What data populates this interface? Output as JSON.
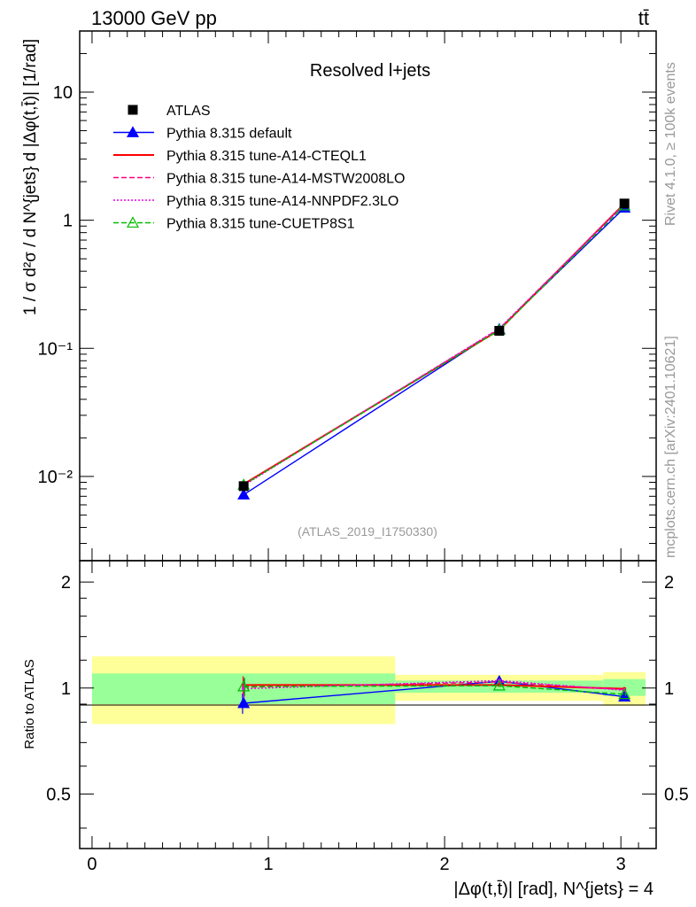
{
  "header": {
    "left": "13000 GeV pp",
    "right": "tt̄"
  },
  "side_labels": {
    "top": "Rivet 4.1.0, ≥ 100k events",
    "bottom": "mcplots.cern.ch [arXiv:2401.10621]"
  },
  "chart_data": [
    {
      "type": "line",
      "panel": "main",
      "title": "Resolved l+jets",
      "watermark": "(ATLAS_2019_I1750330)",
      "ylabel": "1 / σ d²σ / d N^{jets} d |Δφ(t,t̄)| [1/rad]",
      "yscale": "log",
      "ylim": [
        0.0022,
        30
      ],
      "xlim": [
        -0.07,
        3.2
      ],
      "grid": false,
      "legend_position": "top-left",
      "y_tick_labels": [
        "10⁻²",
        "10⁻¹",
        "1",
        "10"
      ],
      "x": [
        0.86,
        2.31,
        3.02
      ],
      "data": {
        "name": "ATLAS",
        "values": [
          0.0084,
          0.137,
          1.35
        ],
        "errors": [
          0.0005,
          0.004,
          0.04
        ]
      },
      "series": [
        {
          "name": "Pythia 8.315 default",
          "color": "#0000ff",
          "style": "solid",
          "marker": "triangle-filled",
          "values": [
            0.0072,
            0.141,
            1.25
          ]
        },
        {
          "name": "Pythia 8.315 tune-A14-CTEQL1",
          "color": "#ff0000",
          "style": "solid",
          "marker": "none",
          "values": [
            0.0087,
            0.139,
            1.35
          ]
        },
        {
          "name": "Pythia 8.315 tune-A14-MSTW2008LO",
          "color": "#ff0080",
          "style": "dashed",
          "marker": "none",
          "values": [
            0.0086,
            0.142,
            1.34
          ]
        },
        {
          "name": "Pythia 8.315 tune-A14-NNPDF2.3LO",
          "color": "#ee00ee",
          "style": "dotted",
          "marker": "none",
          "values": [
            0.0085,
            0.143,
            1.33
          ]
        },
        {
          "name": "Pythia 8.315 tune-CUETP8S1",
          "color": "#00bb00",
          "style": "dashed",
          "marker": "triangle-open",
          "values": [
            0.0086,
            0.139,
            1.3
          ]
        }
      ]
    },
    {
      "type": "line",
      "panel": "ratio",
      "ylabel": "Ratio to ATLAS",
      "xlabel": "|Δφ(t,t̄)| [rad], N^{jets} = 4",
      "ylim": [
        0.35,
        2.3
      ],
      "xlim": [
        -0.07,
        3.2
      ],
      "x_tick_labels": [
        "0",
        "1",
        "2",
        "3"
      ],
      "y_tick_labels": [
        "0.5",
        "1",
        "2"
      ],
      "bands": [
        {
          "x": [
            0.0,
            1.72
          ],
          "yellow": [
            0.79,
            1.23
          ],
          "green": [
            0.9,
            1.1
          ]
        },
        {
          "x": [
            1.72,
            2.9
          ],
          "yellow": [
            0.92,
            1.09
          ],
          "green": [
            0.97,
            1.05
          ]
        },
        {
          "x": [
            2.9,
            3.14
          ],
          "yellow": [
            0.89,
            1.11
          ],
          "green": [
            0.95,
            1.06
          ]
        }
      ],
      "x": [
        0.86,
        2.31,
        3.02
      ],
      "series": [
        {
          "name": "Pythia 8.315 default",
          "color": "#0000ff",
          "style": "solid",
          "marker": "triangle-filled",
          "values": [
            0.905,
            1.045,
            0.945
          ],
          "errors": [
            0.06,
            0.01,
            0.01
          ]
        },
        {
          "name": "Pythia 8.315 tune-A14-CTEQL1",
          "color": "#ff0000",
          "style": "solid",
          "marker": "none",
          "values": [
            1.02,
            1.02,
            0.995
          ],
          "errors": [
            0.06,
            0.01,
            0.01
          ]
        },
        {
          "name": "Pythia 8.315 tune-A14-MSTW2008LO",
          "color": "#ff0080",
          "style": "dashed",
          "marker": "none",
          "values": [
            1.005,
            1.04,
            0.99
          ],
          "errors": [
            0.06,
            0.01,
            0.01
          ]
        },
        {
          "name": "Pythia 8.315 tune-A14-NNPDF2.3LO",
          "color": "#ee00ee",
          "style": "dotted",
          "marker": "none",
          "values": [
            0.995,
            1.05,
            0.985
          ],
          "errors": [
            0.06,
            0.01,
            0.01
          ]
        },
        {
          "name": "Pythia 8.315 tune-CUETP8S1",
          "color": "#00bb00",
          "style": "dashed",
          "marker": "triangle-open",
          "values": [
            1.01,
            1.015,
            0.96
          ],
          "errors": [
            0.06,
            0.01,
            0.01
          ]
        }
      ]
    }
  ]
}
